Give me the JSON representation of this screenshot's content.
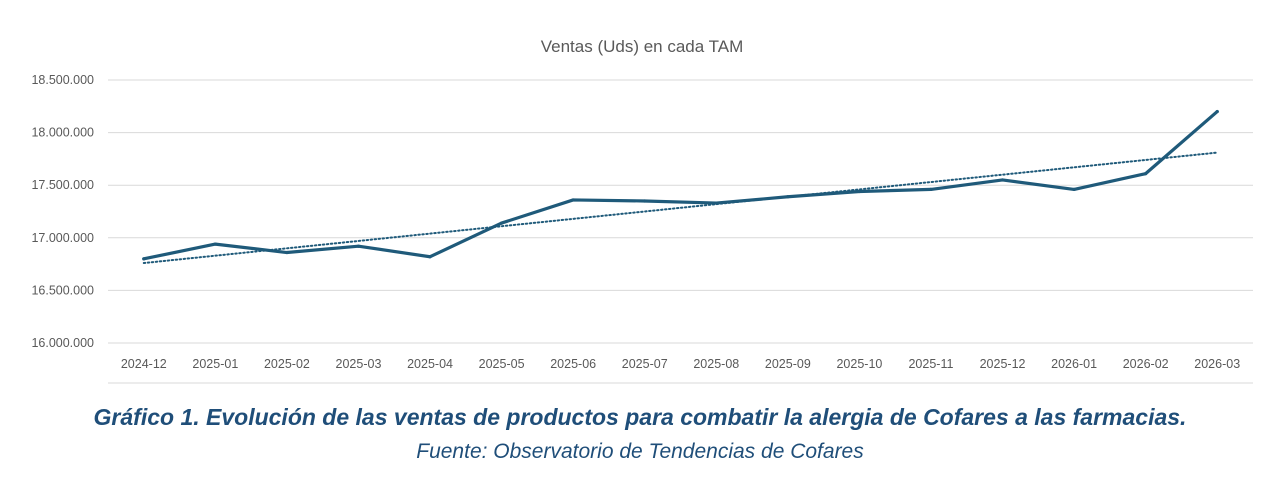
{
  "chart_data": {
    "type": "line",
    "title": "Ventas (Uds) en cada TAM",
    "xlabel": "",
    "ylabel": "",
    "ylim": [
      16000000,
      18500000
    ],
    "yticks": [
      16000000,
      16500000,
      17000000,
      17500000,
      18000000,
      18500000
    ],
    "ytick_labels": [
      "16.000.000",
      "16.500.000",
      "17.000.000",
      "17.500.000",
      "18.000.000",
      "18.500.000"
    ],
    "grid": true,
    "categories": [
      "2024-12",
      "2025-01",
      "2025-02",
      "2025-03",
      "2025-04",
      "2025-05",
      "2025-06",
      "2025-07",
      "2025-08",
      "2025-09",
      "2025-10",
      "2025-11",
      "2025-12",
      "2026-01",
      "2026-02",
      "2026-03"
    ],
    "series": [
      {
        "name": "Ventas (Uds)",
        "color": "#1f5a7a",
        "values": [
          16800000,
          16940000,
          16860000,
          16920000,
          16820000,
          17140000,
          17360000,
          17350000,
          17330000,
          17390000,
          17440000,
          17460000,
          17550000,
          17460000,
          17610000,
          18200000
        ]
      }
    ],
    "trendline": {
      "type": "linear",
      "style": "dotted",
      "color": "#1f5a7a",
      "start_value": 16760000,
      "end_value": 17810000
    }
  },
  "caption": {
    "title": "Gráfico 1. Evolución de las ventas de productos para combatir la alergia de Cofares a las farmacias.",
    "source": "Fuente: Observatorio de Tendencias de Cofares"
  }
}
